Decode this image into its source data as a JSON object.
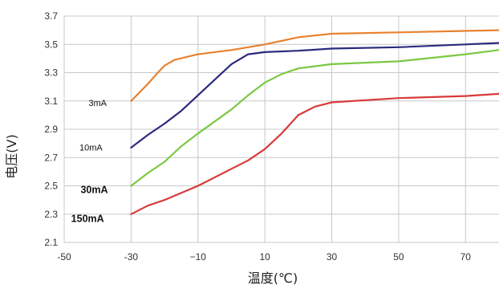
{
  "chart_data": {
    "type": "line",
    "xlabel": "温度(℃)",
    "ylabel": "电压(V)",
    "xlim": [
      -50,
      80
    ],
    "ylim": [
      2.1,
      3.7
    ],
    "x_ticks": [
      "-50",
      "-30",
      "−10",
      "10",
      "30",
      "50",
      "70"
    ],
    "y_ticks": [
      "2.1",
      "2.3",
      "2.5",
      "2.7",
      "2.9",
      "3.1",
      "3.3",
      "3.5",
      "3.7"
    ],
    "grid": true,
    "series": [
      {
        "name": "3mA",
        "color": "#e8812e",
        "x": [
          -30,
          -25,
          -22,
          -20,
          -17,
          -10,
          0,
          10,
          20,
          30,
          50,
          70,
          80
        ],
        "y": [
          3.1,
          3.22,
          3.3,
          3.35,
          3.39,
          3.43,
          3.46,
          3.5,
          3.55,
          3.575,
          3.585,
          3.595,
          3.6
        ]
      },
      {
        "name": "10mA",
        "color": "#2b2a7e",
        "x": [
          -30,
          -25,
          -20,
          -15,
          -10,
          -5,
          0,
          5,
          10,
          20,
          30,
          50,
          70,
          80
        ],
        "y": [
          2.77,
          2.86,
          2.94,
          3.03,
          3.14,
          3.25,
          3.36,
          3.43,
          3.445,
          3.455,
          3.47,
          3.48,
          3.5,
          3.51
        ]
      },
      {
        "name": "30mA",
        "color": "#7ac943",
        "x": [
          -30,
          -25,
          -20,
          -15,
          -10,
          0,
          5,
          10,
          15,
          20,
          30,
          50,
          70,
          80
        ],
        "y": [
          2.5,
          2.59,
          2.67,
          2.78,
          2.87,
          3.04,
          3.14,
          3.23,
          3.29,
          3.33,
          3.36,
          3.38,
          3.43,
          3.46
        ]
      },
      {
        "name": "150mA",
        "color": "#d93a3a",
        "x": [
          -30,
          -25,
          -20,
          -10,
          0,
          5,
          10,
          15,
          20,
          25,
          30,
          50,
          70,
          80
        ],
        "y": [
          2.3,
          2.36,
          2.4,
          2.5,
          2.62,
          2.68,
          2.76,
          2.87,
          3.0,
          3.06,
          3.09,
          3.12,
          3.135,
          3.15
        ]
      }
    ]
  }
}
